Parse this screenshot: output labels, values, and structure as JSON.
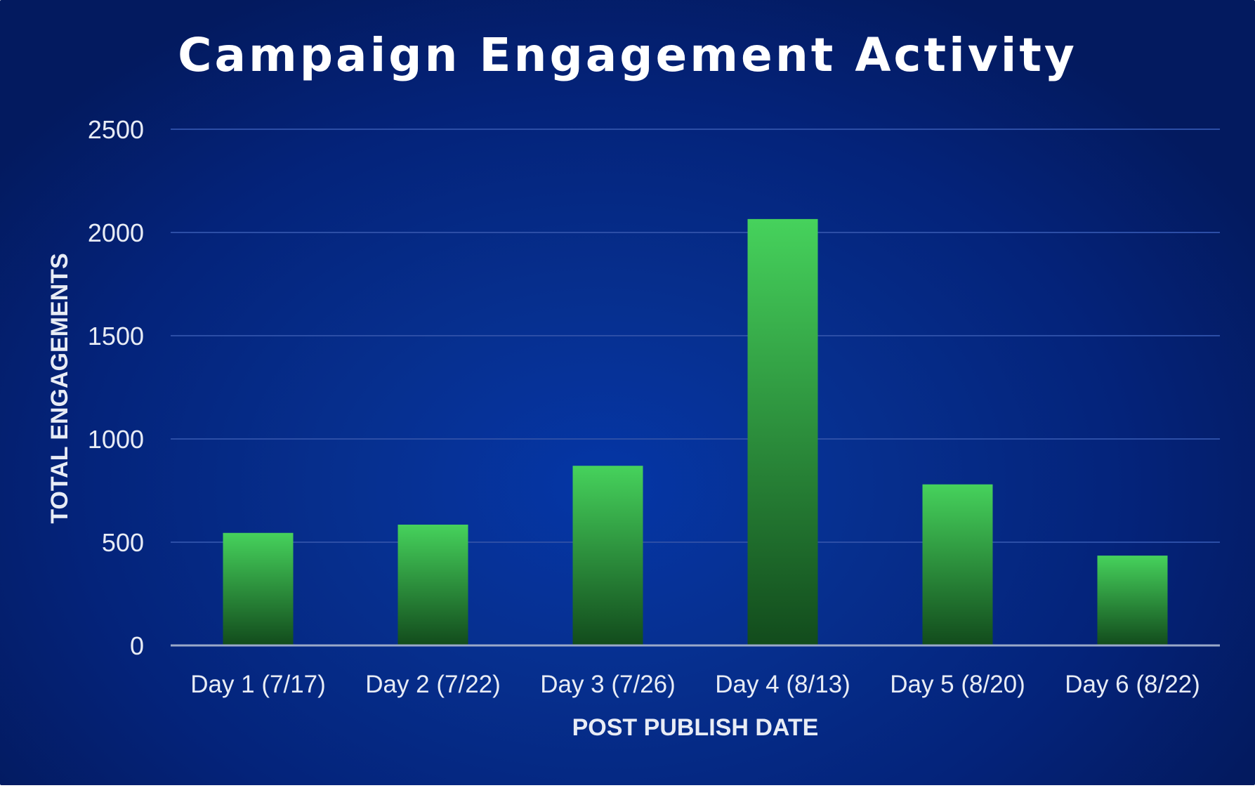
{
  "chart_data": {
    "type": "bar",
    "title": "Campaign Engagement Activity",
    "xlabel": "POST PUBLISH DATE",
    "ylabel": "TOTAL ENGAGEMENTS",
    "categories": [
      "Day 1 (7/17)",
      "Day 2 (7/22)",
      "Day 3 (7/26)",
      "Day 4 (8/13)",
      "Day 5 (8/20)",
      "Day 6 (8/22)"
    ],
    "values": [
      545,
      585,
      870,
      2065,
      780,
      435
    ],
    "ylim": [
      0,
      2500
    ],
    "yticks": [
      "0",
      "500",
      "1000",
      "1500",
      "2000",
      "2500"
    ],
    "grid": true,
    "legend": "none",
    "colors": {
      "background": "#062f8e",
      "bar_top": "#46d25c",
      "bar_bottom": "#124b1c",
      "gridline": "#2c4ea6",
      "baseline": "#9aa9c9",
      "text": "#ffffff",
      "tick_text": "#e8ecf5"
    }
  }
}
